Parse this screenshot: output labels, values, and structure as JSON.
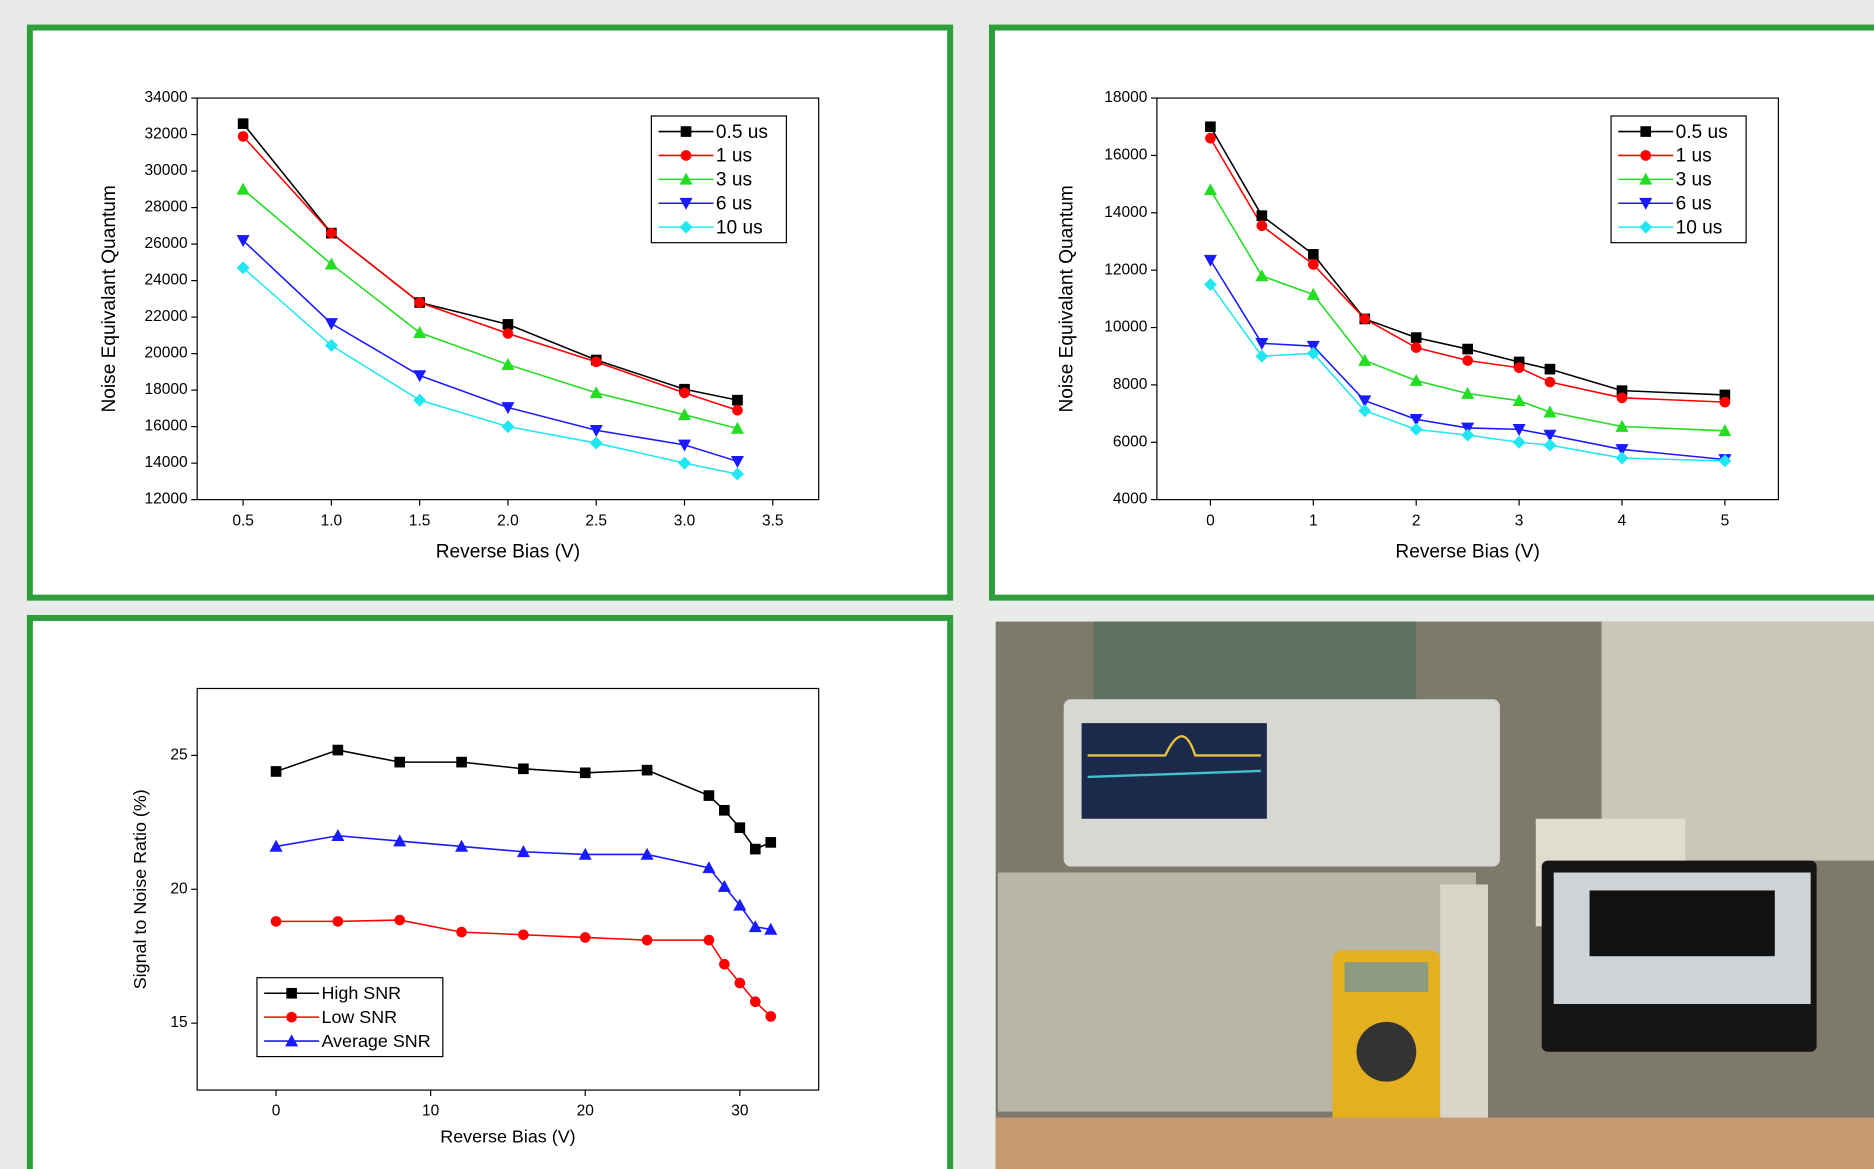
{
  "chart_data": [
    {
      "type": "line",
      "x_label": "Reverse Bias (V)",
      "y_label": "Noise Equivalant Quantum",
      "x": [
        0.5,
        1.0,
        1.5,
        2.0,
        2.5,
        3.0,
        3.3
      ],
      "xlim": [
        0.24,
        3.76
      ],
      "ylim": [
        12000,
        34000
      ],
      "xticks": [
        0.5,
        {
          "value": 1,
          "label": "1.0"
        },
        1.5,
        {
          "value": 2,
          "label": "2.0"
        },
        2.5,
        {
          "value": 3,
          "label": "3.0"
        },
        3.5
      ],
      "yticks": [
        12000,
        14000,
        16000,
        18000,
        20000,
        22000,
        24000,
        26000,
        28000,
        30000,
        32000,
        34000
      ],
      "legend": "upper right",
      "series": [
        {
          "name": "0.5 us",
          "color": "#000000",
          "marker": "square",
          "values": [
            32600,
            26600,
            22800,
            21600,
            19650,
            18050,
            17450
          ]
        },
        {
          "name": "1 us",
          "color": "#ff0000",
          "marker": "circle",
          "values": [
            31900,
            26600,
            22800,
            21100,
            19550,
            17850,
            16900
          ]
        },
        {
          "name": "3 us",
          "color": "#22dd22",
          "marker": "triangle-up",
          "values": [
            29000,
            24900,
            21150,
            19400,
            17850,
            16650,
            15900
          ]
        },
        {
          "name": "6 us",
          "color": "#1a1aff",
          "marker": "triangle-down",
          "values": [
            26200,
            21650,
            18800,
            17050,
            15800,
            15000,
            14100
          ]
        },
        {
          "name": "10 us",
          "color": "#22e6f0",
          "marker": "diamond",
          "values": [
            24700,
            20450,
            17450,
            16000,
            15100,
            14000,
            13400
          ]
        }
      ]
    },
    {
      "type": "line",
      "x_label": "Reverse Bias (V)",
      "y_label": "Noise Equivalant Quantum",
      "x": [
        0,
        0.5,
        1,
        1.5,
        2,
        2.5,
        3,
        3.3,
        4,
        5
      ],
      "xlim": [
        -0.52,
        5.52
      ],
      "ylim": [
        4000,
        18000
      ],
      "xticks": [
        0,
        1,
        2,
        3,
        4,
        5
      ],
      "yticks": [
        4000,
        6000,
        8000,
        10000,
        12000,
        14000,
        16000,
        18000
      ],
      "legend": "upper right",
      "series": [
        {
          "name": "0.5 us",
          "color": "#000000",
          "marker": "square",
          "values": [
            17000,
            13900,
            12550,
            10300,
            9650,
            9250,
            8800,
            8550,
            7800,
            7650
          ]
        },
        {
          "name": "1 us",
          "color": "#ff0000",
          "marker": "circle",
          "values": [
            16600,
            13550,
            12200,
            10300,
            9300,
            8850,
            8600,
            8100,
            7550,
            7400
          ]
        },
        {
          "name": "3 us",
          "color": "#22dd22",
          "marker": "triangle-up",
          "values": [
            14800,
            11800,
            11150,
            8850,
            8150,
            7700,
            7450,
            7050,
            6550,
            6400
          ]
        },
        {
          "name": "6 us",
          "color": "#1a1aff",
          "marker": "triangle-down",
          "values": [
            12350,
            9450,
            9350,
            7450,
            6800,
            6500,
            6450,
            6250,
            5750,
            5400
          ]
        },
        {
          "name": "10 us",
          "color": "#22e6f0",
          "marker": "diamond",
          "values": [
            11500,
            9000,
            9100,
            7100,
            6450,
            6250,
            6000,
            5900,
            5450,
            5350
          ]
        }
      ]
    },
    {
      "type": "line",
      "x_label": "Reverse Bias (V)",
      "y_label": "Signal to Noise Ratio (%)",
      "x": [
        0,
        4,
        8,
        12,
        16,
        20,
        24,
        28,
        29,
        30,
        31,
        32
      ],
      "xlim": [
        -5.1,
        35.1
      ],
      "ylim": [
        12.5,
        27.5
      ],
      "xticks": [
        0,
        10,
        20,
        30
      ],
      "yticks": [
        15,
        20,
        25
      ],
      "legend": "lower left",
      "series": [
        {
          "name": "High SNR",
          "color": "#000000",
          "marker": "square",
          "values": [
            24.4,
            25.2,
            24.75,
            24.75,
            24.5,
            24.35,
            24.45,
            23.5,
            22.95,
            22.3,
            21.5,
            21.75
          ]
        },
        {
          "name": "Low SNR",
          "color": "#ff0000",
          "marker": "circle",
          "values": [
            18.8,
            18.8,
            18.85,
            18.4,
            18.3,
            18.2,
            18.1,
            18.1,
            17.2,
            16.5,
            15.8,
            15.25
          ]
        },
        {
          "name": "Average SNR",
          "color": "#1a1aff",
          "marker": "triangle-up",
          "values": [
            21.6,
            22.0,
            21.8,
            21.6,
            21.4,
            21.3,
            21.3,
            20.8,
            20.1,
            19.4,
            18.6,
            18.5
          ]
        }
      ]
    }
  ]
}
